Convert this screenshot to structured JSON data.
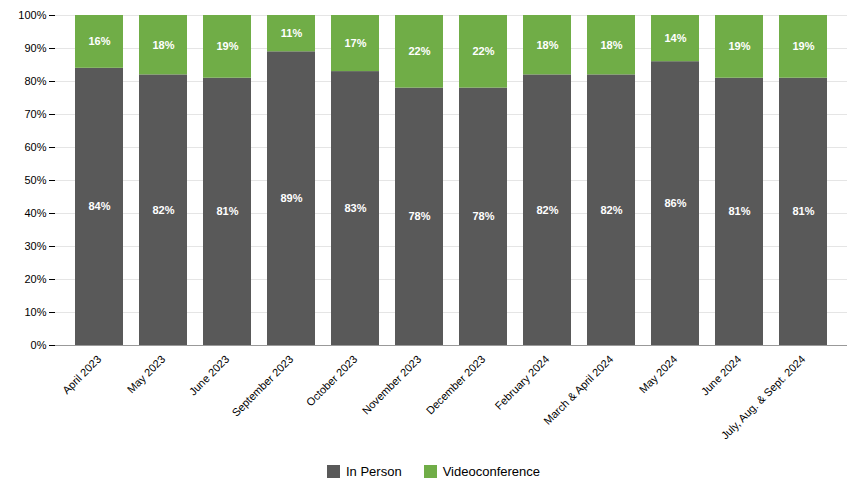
{
  "chart_data": {
    "type": "bar",
    "stacked": true,
    "categories": [
      "April 2023",
      "May 2023",
      "June 2023",
      "September 2023",
      "October 2023",
      "November 2023",
      "December 2023",
      "February 2024",
      "March & April 2024",
      "May 2024",
      "June 2024",
      "July, Aug. & Sept. 2024"
    ],
    "series": [
      {
        "name": "In Person",
        "color": "#595959",
        "values": [
          84,
          82,
          81,
          89,
          83,
          78,
          78,
          82,
          82,
          86,
          81,
          81
        ],
        "value_labels": [
          "84%",
          "82%",
          "81%",
          "89%",
          "83%",
          "78%",
          "78%",
          "82%",
          "82%",
          "86%",
          "81%",
          "81%"
        ]
      },
      {
        "name": "Videoconference",
        "color": "#70AD47",
        "values": [
          16,
          18,
          19,
          11,
          17,
          22,
          22,
          18,
          18,
          14,
          19,
          19
        ],
        "value_labels": [
          "16%",
          "18%",
          "19%",
          "11%",
          "17%",
          "22%",
          "22%",
          "18%",
          "18%",
          "14%",
          "19%",
          "19%"
        ]
      }
    ],
    "ylim": [
      0,
      100
    ],
    "yticks": [
      {
        "value": 0,
        "label": "0%"
      },
      {
        "value": 10,
        "label": "10%"
      },
      {
        "value": 20,
        "label": "20%"
      },
      {
        "value": 30,
        "label": "30%"
      },
      {
        "value": 40,
        "label": "40%"
      },
      {
        "value": 50,
        "label": "50%"
      },
      {
        "value": 60,
        "label": "60%"
      },
      {
        "value": 70,
        "label": "70%"
      },
      {
        "value": 80,
        "label": "80%"
      },
      {
        "value": 90,
        "label": "90%"
      },
      {
        "value": 100,
        "label": "100%"
      }
    ],
    "grid": true,
    "data_labels": true,
    "legend": "bottom"
  }
}
